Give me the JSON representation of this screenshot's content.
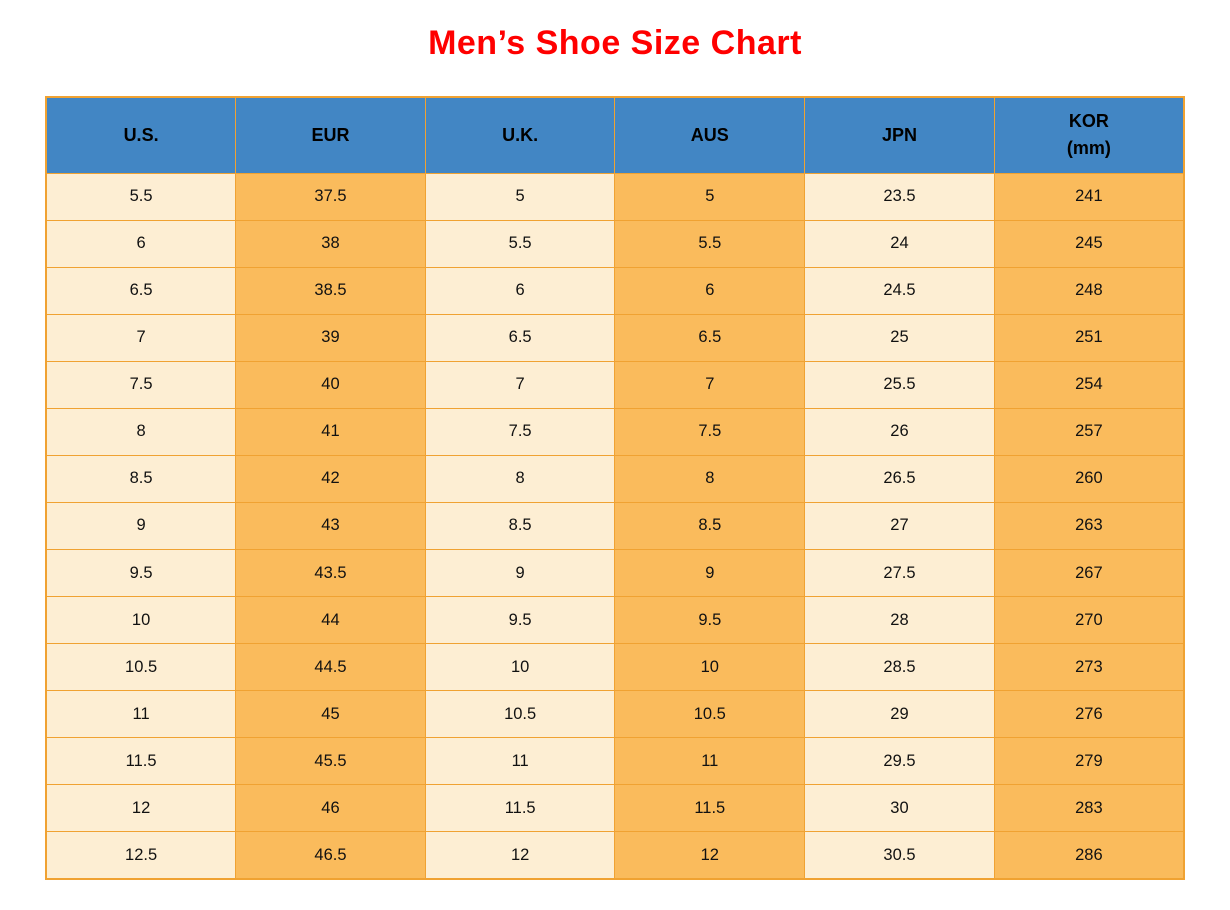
{
  "title": {
    "text": "Men’s Shoe Size Chart"
  },
  "colors": {
    "page_bg": "#ffffff",
    "title_color": "#ff0000",
    "header_bg": "#4286c4",
    "header_text": "#000000",
    "cell_text": "#111111",
    "col_light": "#fdeed3",
    "col_dark": "#fabb5c",
    "border": "#f0a232"
  },
  "chart_data": {
    "type": "table",
    "title": "Men’s Shoe Size Chart",
    "columns": [
      "U.S.",
      "EUR",
      "U.K.",
      "AUS",
      "JPN",
      "KOR\n(mm)"
    ],
    "rows": [
      [
        5.5,
        37.5,
        5,
        5,
        23.5,
        241
      ],
      [
        6,
        38,
        5.5,
        5.5,
        24,
        245
      ],
      [
        6.5,
        38.5,
        6,
        6,
        24.5,
        248
      ],
      [
        7,
        39,
        6.5,
        6.5,
        25,
        251
      ],
      [
        7.5,
        40,
        7,
        7,
        25.5,
        254
      ],
      [
        8,
        41,
        7.5,
        7.5,
        26,
        257
      ],
      [
        8.5,
        42,
        8,
        8,
        26.5,
        260
      ],
      [
        9,
        43,
        8.5,
        8.5,
        27,
        263
      ],
      [
        9.5,
        43.5,
        9,
        9,
        27.5,
        267
      ],
      [
        10,
        44,
        9.5,
        9.5,
        28,
        270
      ],
      [
        10.5,
        44.5,
        10,
        10,
        28.5,
        273
      ],
      [
        11,
        45,
        10.5,
        10.5,
        29,
        276
      ],
      [
        11.5,
        45.5,
        11,
        11,
        29.5,
        279
      ],
      [
        12,
        46,
        11.5,
        11.5,
        30,
        283
      ],
      [
        12.5,
        46.5,
        12,
        12,
        30.5,
        286
      ]
    ],
    "layout": {
      "header_style": "blue background, bold black text",
      "column_stripes": "columns alternate light cream / orange starting with cream",
      "grid": "orange borders on all cells",
      "legend": "none"
    }
  }
}
